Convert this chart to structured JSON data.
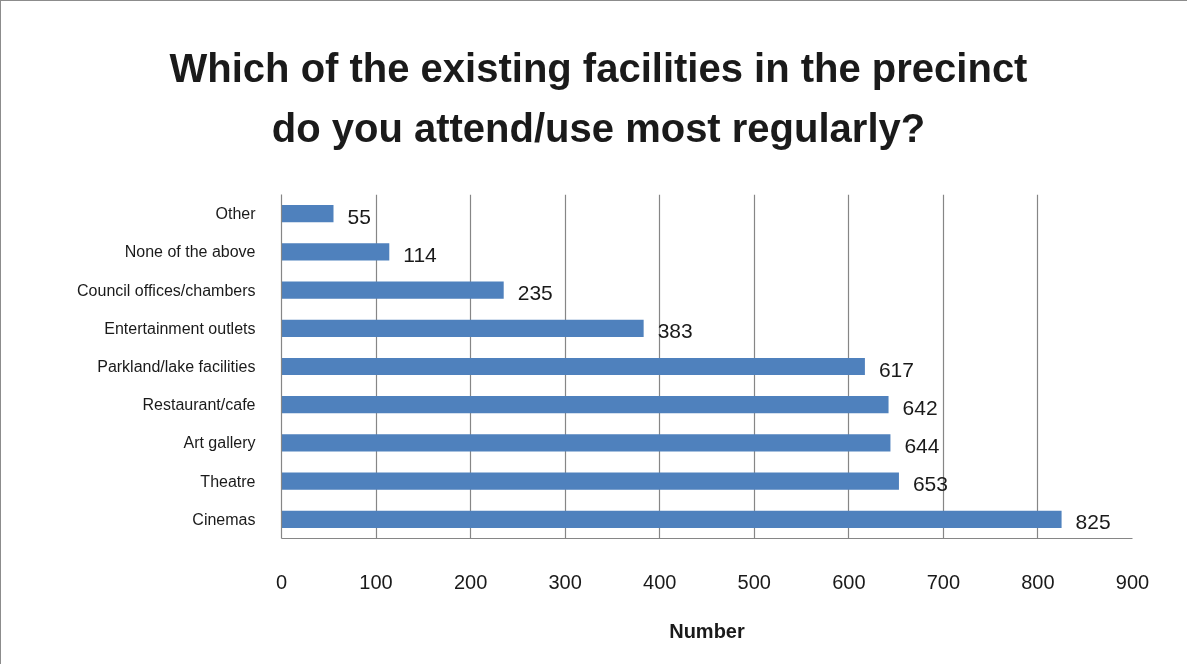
{
  "chart_data": {
    "type": "bar",
    "orientation": "horizontal",
    "title": "Which of the existing facilities in the precinct do you attend/use most regularly?",
    "xlabel": "Number",
    "categories": [
      "Other",
      "None of the above",
      "Council offices/chambers",
      "Entertainment outlets",
      "Parkland/lake facilities",
      "Restaurant/cafe",
      "Art gallery",
      "Theatre",
      "Cinemas"
    ],
    "values": [
      55,
      114,
      235,
      383,
      617,
      642,
      644,
      653,
      825
    ],
    "color": "#4f81bd",
    "xlim": [
      0,
      900
    ],
    "xticks": [
      0,
      100,
      200,
      300,
      400,
      500,
      600,
      700,
      800,
      900
    ],
    "grid": "x",
    "data_labels": true
  }
}
